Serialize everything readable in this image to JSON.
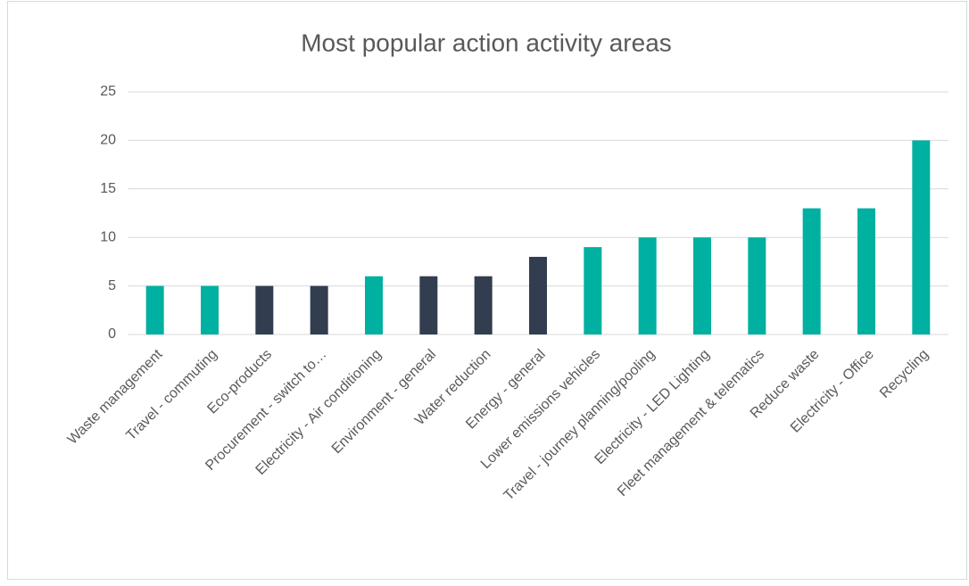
{
  "chart_data": {
    "type": "bar",
    "title": "Most popular action activity areas",
    "categories": [
      "Waste management",
      "Travel - commuting",
      "Eco-products",
      "Procurement - switch to…",
      "Electricity - Air conditioning",
      "Environment - general",
      "Water reduction",
      "Energy - general",
      "Lower emissions vehicles",
      "Travel - journey planning/pooling",
      "Electricity - LED Lighting",
      "Fleet management & telematics",
      "Reduce waste",
      "Electricity - Office",
      "Recycling"
    ],
    "values": [
      5,
      5,
      5,
      5,
      6,
      6,
      6,
      8,
      9,
      10,
      10,
      10,
      13,
      13,
      20
    ],
    "colors": [
      "#00b0a0",
      "#00b0a0",
      "#323e4f",
      "#323e4f",
      "#00b0a0",
      "#323e4f",
      "#323e4f",
      "#323e4f",
      "#00b0a0",
      "#00b0a0",
      "#00b0a0",
      "#00b0a0",
      "#00b0a0",
      "#00b0a0",
      "#00b0a0"
    ],
    "ylim": [
      0,
      25
    ],
    "yticks": [
      0,
      5,
      10,
      15,
      20,
      25
    ],
    "grid": true
  }
}
